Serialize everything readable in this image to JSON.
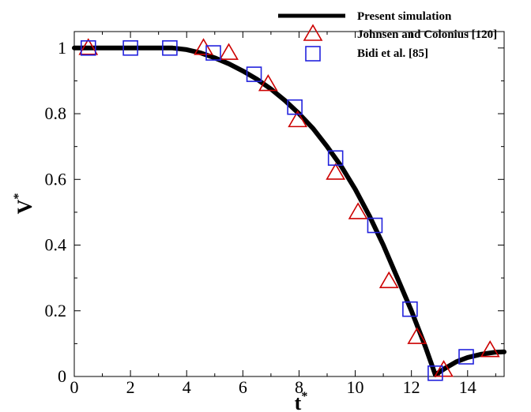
{
  "chart_data": {
    "type": "line",
    "xlabel": "t",
    "xlabel_superscript": "*",
    "ylabel": "V",
    "ylabel_superscript": "*",
    "xlim": [
      0,
      15.3
    ],
    "ylim": [
      0,
      1.05
    ],
    "x_ticks": [
      0,
      2,
      4,
      6,
      8,
      10,
      12,
      14
    ],
    "y_ticks": [
      0,
      0.2,
      0.4,
      0.6,
      0.8,
      1
    ],
    "x_tick_labels": [
      "0",
      "2",
      "4",
      "6",
      "8",
      "10",
      "12",
      "14"
    ],
    "y_tick_labels": [
      "0",
      "0.2",
      "0.4",
      "0.6",
      "0.8",
      "1"
    ],
    "grid": false,
    "legend_position": "top-right",
    "series": [
      {
        "name": "Present simulation",
        "style": "line",
        "color": "#000000",
        "x": [
          0,
          1,
          2,
          3,
          3.5,
          4,
          4.5,
          5,
          5.5,
          6,
          6.5,
          7,
          7.5,
          8,
          8.5,
          9,
          9.5,
          10,
          10.5,
          11,
          11.5,
          12,
          12.5,
          12.85,
          13.2,
          13.6,
          14,
          14.5,
          15,
          15.3
        ],
        "y": [
          1,
          1,
          1,
          1,
          1,
          0.995,
          0.985,
          0.97,
          0.952,
          0.93,
          0.905,
          0.875,
          0.84,
          0.8,
          0.755,
          0.7,
          0.64,
          0.57,
          0.49,
          0.4,
          0.3,
          0.2,
          0.09,
          0.005,
          0.025,
          0.045,
          0.058,
          0.068,
          0.074,
          0.075
        ]
      },
      {
        "name": "Johnsen and Colonius [120]",
        "style": "triangle",
        "color": "#cc0000",
        "x": [
          0.5,
          4.6,
          5.5,
          6.9,
          7.95,
          9.3,
          10.1,
          11.2,
          12.2,
          13.15,
          14.8
        ],
        "y": [
          1.0,
          1.0,
          0.985,
          0.89,
          0.78,
          0.62,
          0.5,
          0.29,
          0.12,
          0.02,
          0.08
        ]
      },
      {
        "name": "Bidi et al. [85]",
        "style": "square",
        "color": "#2222dd",
        "x": [
          0.5,
          2.0,
          3.4,
          4.95,
          6.4,
          7.85,
          9.3,
          10.7,
          11.95,
          12.85,
          13.95
        ],
        "y": [
          1.0,
          1.0,
          1.0,
          0.985,
          0.92,
          0.82,
          0.665,
          0.46,
          0.205,
          0.01,
          0.06
        ]
      }
    ]
  }
}
